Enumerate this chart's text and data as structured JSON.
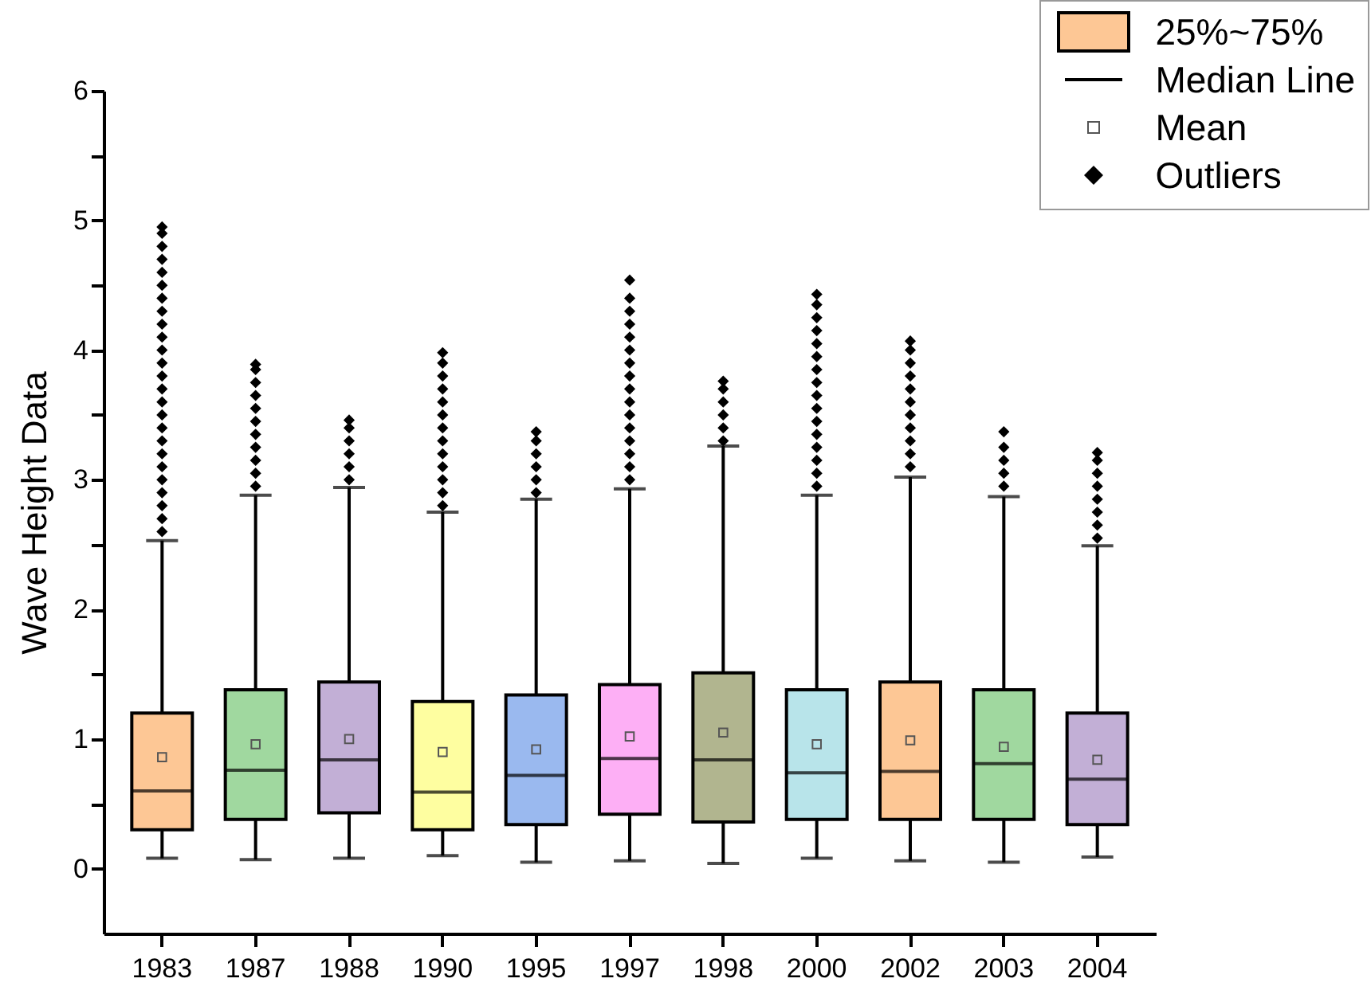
{
  "chart_data": {
    "type": "box",
    "ylabel": "Wave Height Data",
    "categories": [
      "1983",
      "1987",
      "1988",
      "1990",
      "1995",
      "1997",
      "1998",
      "2000",
      "2002",
      "2003",
      "2004"
    ],
    "ylim": [
      -0.5,
      6
    ],
    "yticks": [
      0,
      {
        "value": 0.5,
        "label": null
      },
      1,
      {
        "value": 1.5,
        "label": null
      },
      2,
      {
        "value": 2.5,
        "label": null
      },
      3,
      {
        "value": 3.5,
        "label": null
      },
      4,
      {
        "value": 4.5,
        "label": null
      },
      5,
      {
        "value": 5.5,
        "label": null
      },
      6
    ],
    "legend": "top right",
    "annotations": [
      "Median Line",
      "Mean",
      "Outliers"
    ],
    "series": [
      {
        "name": "25%~75%",
        "colors": [
          "#fdc795",
          "#a0d89f",
          "#c2afd6",
          "#fefea0",
          "#9ab9ef",
          "#fdaff5",
          "#b1b58f",
          "#b8e4ea",
          "#fdc795",
          "#a0d89f",
          "#c2afd6"
        ],
        "boxes": [
          {
            "low": 0.08,
            "q1": 0.3,
            "median": 0.6,
            "q3": 1.2,
            "high": 2.53,
            "mean": 0.86,
            "outliers": [
              2.6,
              2.7,
              2.8,
              2.9,
              3.0,
              3.1,
              3.2,
              3.3,
              3.4,
              3.5,
              3.6,
              3.7,
              3.8,
              3.9,
              4.0,
              4.1,
              4.2,
              4.3,
              4.4,
              4.5,
              4.6,
              4.7,
              4.8,
              4.9,
              4.95
            ]
          },
          {
            "low": 0.07,
            "q1": 0.38,
            "median": 0.76,
            "q3": 1.38,
            "high": 2.88,
            "mean": 0.96,
            "outliers": [
              2.95,
              3.05,
              3.15,
              3.25,
              3.35,
              3.45,
              3.55,
              3.65,
              3.75,
              3.85,
              3.89
            ]
          },
          {
            "low": 0.08,
            "q1": 0.43,
            "median": 0.84,
            "q3": 1.44,
            "high": 2.94,
            "mean": 1.0,
            "outliers": [
              3.0,
              3.1,
              3.2,
              3.3,
              3.4,
              3.46
            ]
          },
          {
            "low": 0.1,
            "q1": 0.3,
            "median": 0.59,
            "q3": 1.29,
            "high": 2.75,
            "mean": 0.9,
            "outliers": [
              2.8,
              2.9,
              3.0,
              3.1,
              3.2,
              3.3,
              3.4,
              3.5,
              3.6,
              3.7,
              3.8,
              3.9,
              3.98
            ]
          },
          {
            "low": 0.05,
            "q1": 0.34,
            "median": 0.72,
            "q3": 1.34,
            "high": 2.85,
            "mean": 0.92,
            "outliers": [
              2.9,
              3.0,
              3.1,
              3.2,
              3.3,
              3.37
            ]
          },
          {
            "low": 0.06,
            "q1": 0.42,
            "median": 0.85,
            "q3": 1.42,
            "high": 2.93,
            "mean": 1.02,
            "outliers": [
              3.0,
              3.1,
              3.2,
              3.3,
              3.4,
              3.5,
              3.6,
              3.7,
              3.8,
              3.9,
              4.0,
              4.1,
              4.2,
              4.3,
              4.4,
              4.54
            ]
          },
          {
            "low": 0.04,
            "q1": 0.36,
            "median": 0.84,
            "q3": 1.51,
            "high": 3.26,
            "mean": 1.05,
            "outliers": [
              3.3,
              3.4,
              3.5,
              3.6,
              3.7,
              3.76
            ]
          },
          {
            "low": 0.08,
            "q1": 0.38,
            "median": 0.74,
            "q3": 1.38,
            "high": 2.88,
            "mean": 0.96,
            "outliers": [
              2.95,
              3.05,
              3.15,
              3.25,
              3.35,
              3.45,
              3.55,
              3.65,
              3.75,
              3.85,
              3.95,
              4.05,
              4.15,
              4.25,
              4.35,
              4.43
            ]
          },
          {
            "low": 0.06,
            "q1": 0.38,
            "median": 0.75,
            "q3": 1.44,
            "high": 3.02,
            "mean": 0.99,
            "outliers": [
              3.1,
              3.2,
              3.3,
              3.4,
              3.5,
              3.6,
              3.7,
              3.8,
              3.9,
              4.0,
              4.07
            ]
          },
          {
            "low": 0.05,
            "q1": 0.38,
            "median": 0.81,
            "q3": 1.38,
            "high": 2.87,
            "mean": 0.94,
            "outliers": [
              2.95,
              3.05,
              3.15,
              3.25,
              3.37
            ]
          },
          {
            "low": 0.09,
            "q1": 0.34,
            "median": 0.69,
            "q3": 1.2,
            "high": 2.49,
            "mean": 0.84,
            "outliers": [
              2.55,
              2.65,
              2.75,
              2.85,
              2.95,
              3.05,
              3.15,
              3.21
            ]
          }
        ]
      }
    ]
  }
}
